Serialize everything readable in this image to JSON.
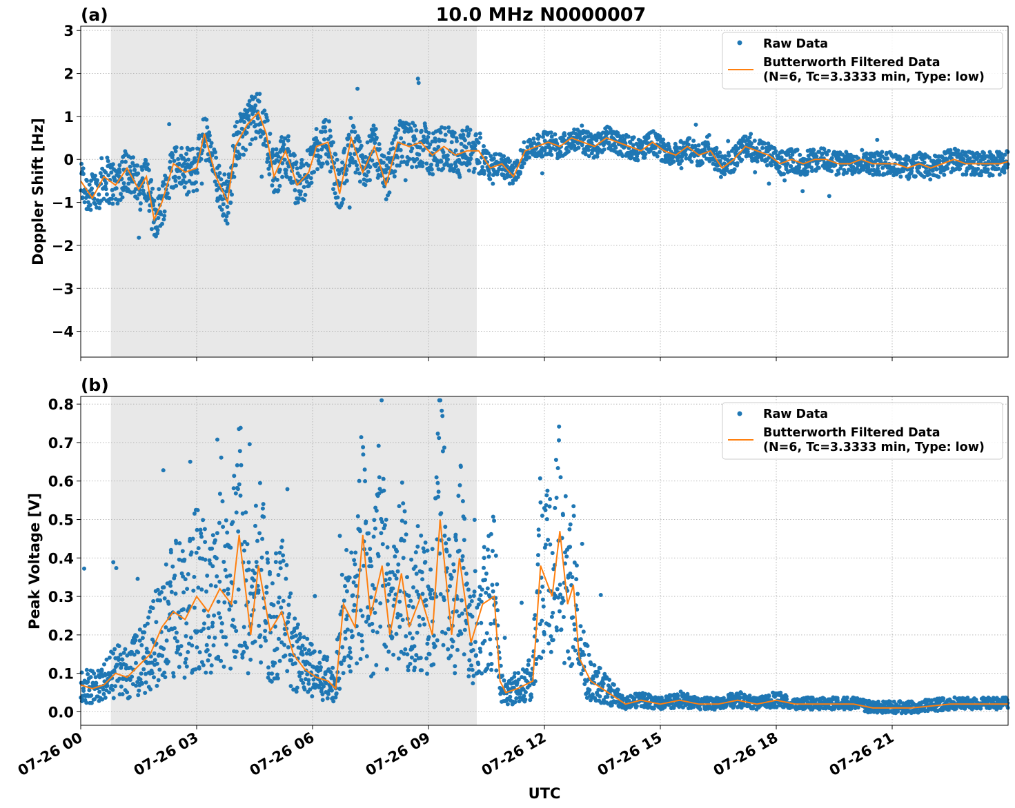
{
  "figure": {
    "title": "10.0 MHz N0000007",
    "xlabel": "UTC"
  },
  "colors": {
    "raw": "#1f77b4",
    "filtered": "#ff7f0e",
    "shade": "#e8e8e8",
    "grid": "#b0b0b0"
  },
  "chart_data": [
    {
      "type": "scatter",
      "panel_label": "(a)",
      "ylabel": "Doppler Shift [Hz]",
      "xlim_hours": [
        0,
        24
      ],
      "ylim": [
        -4.6,
        3.1
      ],
      "yticks": [
        -4,
        -3,
        -2,
        -1,
        0,
        1,
        2,
        3
      ],
      "ytick_labels": [
        "−4",
        "−3",
        "−2",
        "−1",
        "0",
        "1",
        "2",
        "3"
      ],
      "shaded_region_hours": [
        0.78,
        10.25
      ],
      "grid": true,
      "legend_position": "top-right",
      "legend": [
        {
          "label": "Raw Data",
          "marker": "dot"
        },
        {
          "label": "Butterworth Filtered Data",
          "label2": "(N=6, Tc=3.3333 min, Type: low)",
          "marker": "line"
        }
      ],
      "series": [
        {
          "name": "Butterworth Filtered Data",
          "x": [
            0,
            0.3,
            0.6,
            0.9,
            1.2,
            1.5,
            1.7,
            1.9,
            2.1,
            2.4,
            2.7,
            3.0,
            3.2,
            3.5,
            3.8,
            4.0,
            4.3,
            4.6,
            4.8,
            5.0,
            5.3,
            5.6,
            5.9,
            6.1,
            6.4,
            6.7,
            7.0,
            7.3,
            7.6,
            7.9,
            8.2,
            8.5,
            8.8,
            9.1,
            9.4,
            9.7,
            10.0,
            10.3,
            10.6,
            10.9,
            11.2,
            11.5,
            11.8,
            12.1,
            12.4,
            12.7,
            13.0,
            13.3,
            13.6,
            13.9,
            14.2,
            14.5,
            14.8,
            15.1,
            15.4,
            15.7,
            16.0,
            16.3,
            16.6,
            16.9,
            17.2,
            17.5,
            17.8,
            18.1,
            18.4,
            18.7,
            19.0,
            19.3,
            19.6,
            19.9,
            20.2,
            20.5,
            20.8,
            21.1,
            21.4,
            21.7,
            22.0,
            22.3,
            22.6,
            22.9,
            23.2,
            23.5,
            23.8,
            24.0
          ],
          "y": [
            -0.5,
            -0.9,
            -0.4,
            -0.6,
            -0.2,
            -0.7,
            -0.4,
            -1.4,
            -1.0,
            -0.1,
            -0.3,
            -0.2,
            0.6,
            -0.4,
            -1.0,
            0.3,
            0.8,
            1.1,
            0.6,
            -0.4,
            0.2,
            -0.6,
            -0.3,
            0.3,
            0.4,
            -0.8,
            0.5,
            -0.3,
            0.3,
            -0.6,
            0.4,
            0.3,
            0.4,
            0.1,
            0.3,
            0.1,
            0.2,
            0.2,
            -0.2,
            -0.1,
            -0.4,
            0.2,
            0.3,
            0.4,
            0.3,
            0.5,
            0.4,
            0.3,
            0.5,
            0.4,
            0.3,
            0.2,
            0.4,
            0.2,
            0.1,
            0.3,
            0.1,
            0.2,
            -0.2,
            0.0,
            0.3,
            0.2,
            0.1,
            -0.1,
            0.0,
            -0.1,
            0.0,
            0.0,
            -0.1,
            -0.1,
            0.0,
            -0.1,
            -0.1,
            -0.1,
            -0.2,
            -0.1,
            -0.2,
            -0.1,
            0.0,
            -0.1,
            -0.1,
            -0.1,
            -0.1,
            -0.05
          ]
        }
      ]
    },
    {
      "type": "scatter",
      "panel_label": "(b)",
      "ylabel": "Peak Voltage [V]",
      "xlim_hours": [
        0,
        24
      ],
      "ylim": [
        -0.035,
        0.82
      ],
      "yticks": [
        0.0,
        0.1,
        0.2,
        0.3,
        0.4,
        0.5,
        0.6,
        0.7,
        0.8
      ],
      "ytick_labels": [
        "0.0",
        "0.1",
        "0.2",
        "0.3",
        "0.4",
        "0.5",
        "0.6",
        "0.7",
        "0.8"
      ],
      "shaded_region_hours": [
        0.78,
        10.25
      ],
      "grid": true,
      "legend_position": "top-right",
      "legend": [
        {
          "label": "Raw Data",
          "marker": "dot"
        },
        {
          "label": "Butterworth Filtered Data",
          "label2": "(N=6, Tc=3.3333 min, Type: low)",
          "marker": "line"
        }
      ],
      "xticks_hours": [
        0,
        3,
        6,
        9,
        12,
        15,
        18,
        21
      ],
      "xtick_labels": [
        "07-26 00",
        "07-26 03",
        "07-26 06",
        "07-26 09",
        "07-26 12",
        "07-26 15",
        "07-26 18",
        "07-26 21"
      ],
      "series": [
        {
          "name": "Butterworth Filtered Data",
          "x": [
            0,
            0.3,
            0.6,
            0.9,
            1.2,
            1.5,
            1.8,
            2.1,
            2.4,
            2.7,
            3.0,
            3.3,
            3.6,
            3.9,
            4.1,
            4.4,
            4.6,
            4.9,
            5.2,
            5.5,
            5.8,
            6.1,
            6.4,
            6.6,
            6.8,
            7.1,
            7.3,
            7.5,
            7.8,
            8.0,
            8.3,
            8.5,
            8.8,
            9.1,
            9.3,
            9.6,
            9.8,
            10.1,
            10.4,
            10.7,
            10.85,
            11.0,
            11.3,
            11.7,
            11.9,
            12.2,
            12.4,
            12.6,
            12.75,
            12.9,
            13.2,
            13.5,
            13.8,
            14.1,
            14.5,
            15.0,
            15.5,
            16.0,
            16.5,
            17.0,
            17.5,
            18.0,
            18.5,
            19.0,
            19.5,
            20.0,
            20.5,
            21.0,
            21.5,
            22.0,
            22.5,
            23.0,
            23.5,
            24.0
          ],
          "y": [
            0.07,
            0.06,
            0.07,
            0.1,
            0.09,
            0.12,
            0.15,
            0.22,
            0.26,
            0.24,
            0.3,
            0.26,
            0.32,
            0.28,
            0.46,
            0.2,
            0.38,
            0.21,
            0.26,
            0.15,
            0.11,
            0.09,
            0.08,
            0.06,
            0.28,
            0.22,
            0.46,
            0.25,
            0.38,
            0.2,
            0.36,
            0.22,
            0.3,
            0.2,
            0.5,
            0.2,
            0.4,
            0.18,
            0.28,
            0.3,
            0.08,
            0.05,
            0.06,
            0.08,
            0.38,
            0.3,
            0.47,
            0.28,
            0.33,
            0.14,
            0.08,
            0.06,
            0.04,
            0.02,
            0.03,
            0.02,
            0.03,
            0.02,
            0.02,
            0.03,
            0.02,
            0.03,
            0.02,
            0.02,
            0.02,
            0.02,
            0.01,
            0.01,
            0.01,
            0.015,
            0.02,
            0.02,
            0.02,
            0.02
          ]
        }
      ]
    }
  ]
}
